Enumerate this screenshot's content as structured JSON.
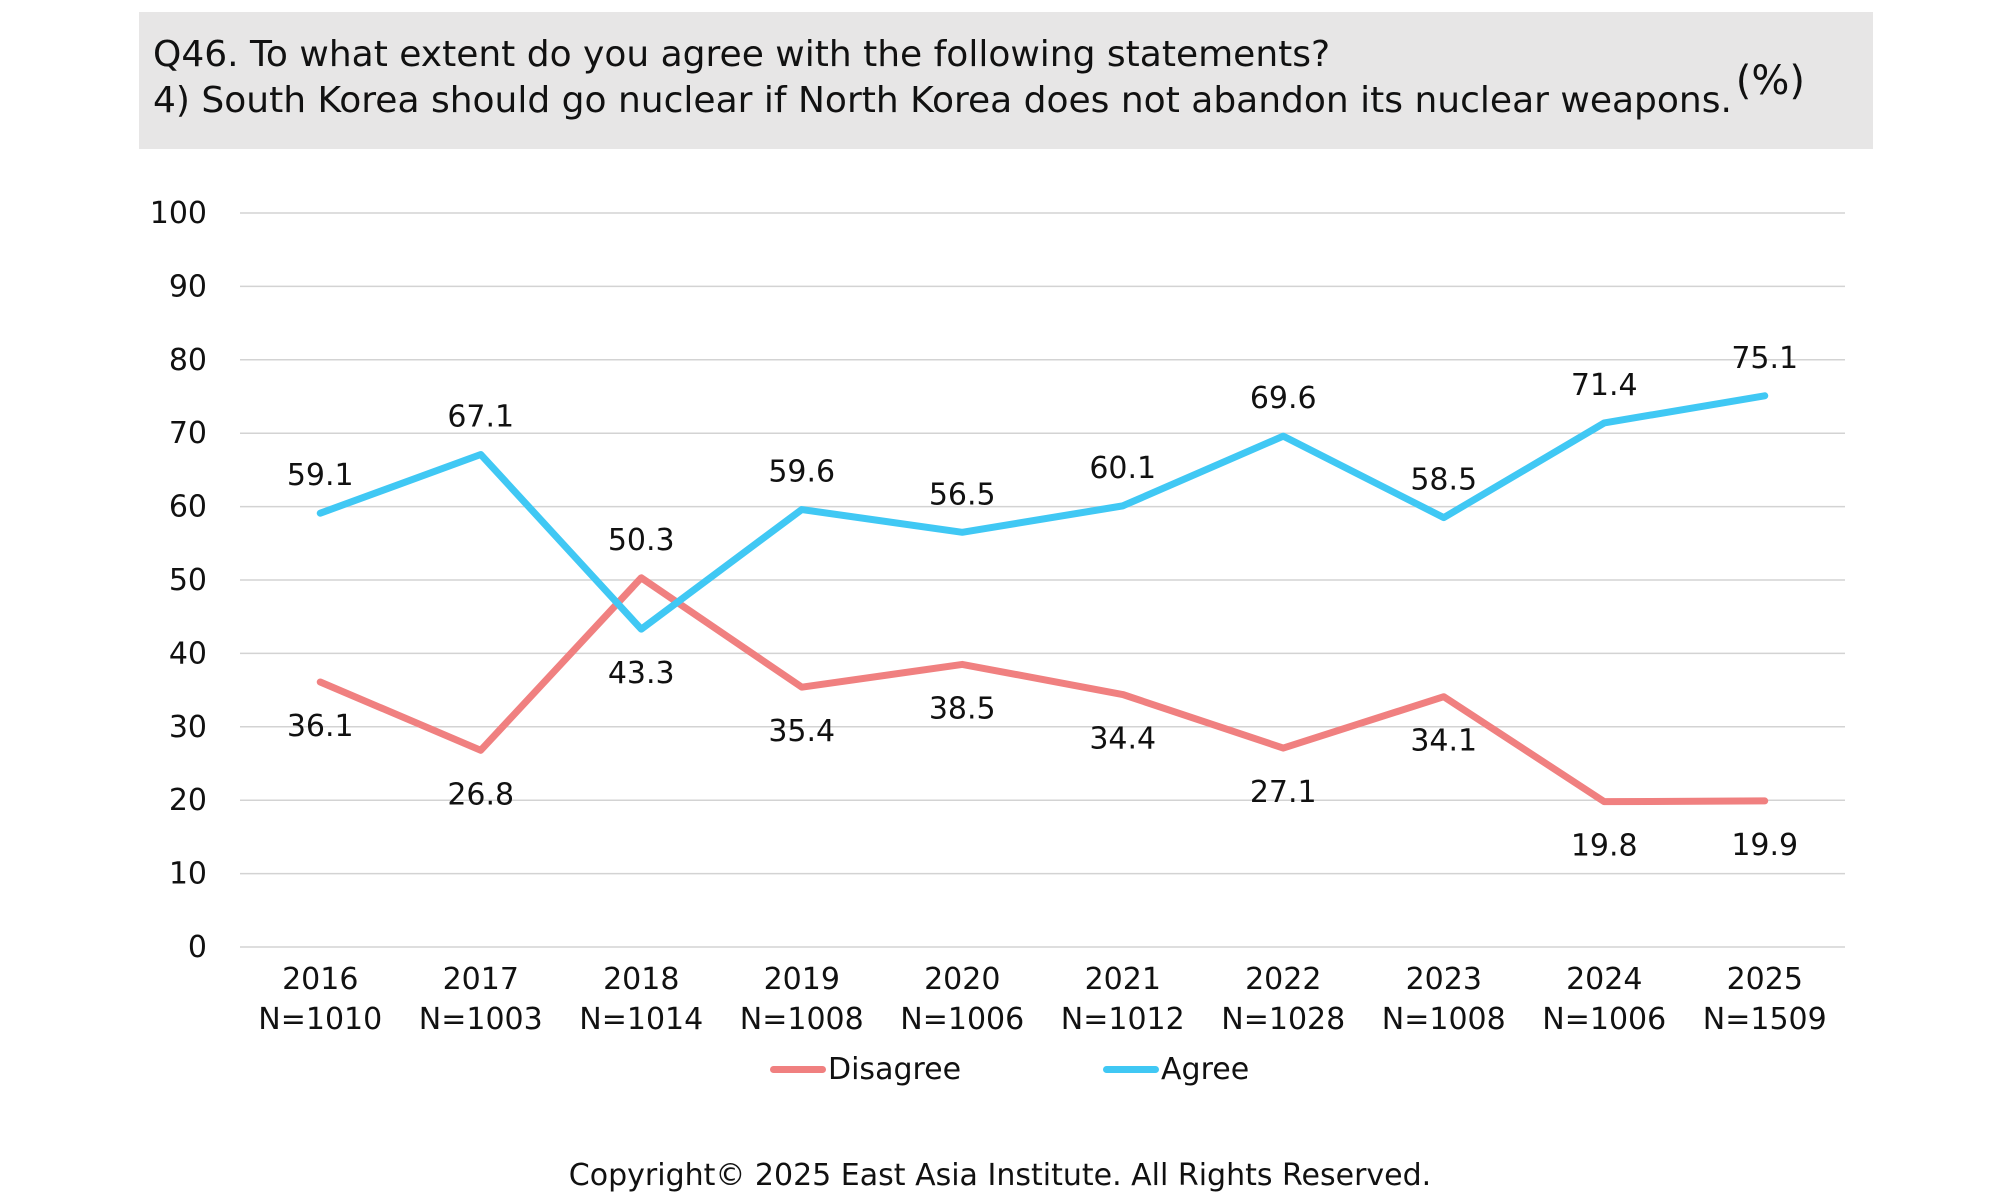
{
  "header": {
    "question": "Q46. To what extent do you agree with the following statements?",
    "statement": "4) South Korea should go nuclear if North Korea does not abandon its nuclear weapons.",
    "unit": "(%)"
  },
  "chart_data": {
    "type": "line",
    "categories": [
      "2016",
      "2017",
      "2018",
      "2019",
      "2020",
      "2021",
      "2022",
      "2023",
      "2024",
      "2025"
    ],
    "sample_sizes": [
      "N=1010",
      "N=1003",
      "N=1014",
      "N=1008",
      "N=1006",
      "N=1012",
      "N=1028",
      "N=1008",
      "N=1006",
      "N=1509"
    ],
    "series": [
      {
        "name": "Disagree",
        "color": "#f08080",
        "values": [
          36.1,
          26.8,
          50.3,
          35.4,
          38.5,
          34.4,
          27.1,
          34.1,
          19.8,
          19.9
        ]
      },
      {
        "name": "Agree",
        "color": "#40c8f4",
        "values": [
          59.1,
          67.1,
          43.3,
          59.6,
          56.5,
          60.1,
          69.6,
          58.5,
          71.4,
          75.1
        ]
      }
    ],
    "yticks": [
      "0",
      "10",
      "20",
      "30",
      "40",
      "50",
      "60",
      "70",
      "80",
      "90",
      "100"
    ],
    "ylim": [
      0,
      100
    ],
    "grid": true,
    "legend": "bottom-center"
  },
  "footer": {
    "copyright": "Copyright© 2025 East Asia Institute. All Rights Reserved."
  }
}
